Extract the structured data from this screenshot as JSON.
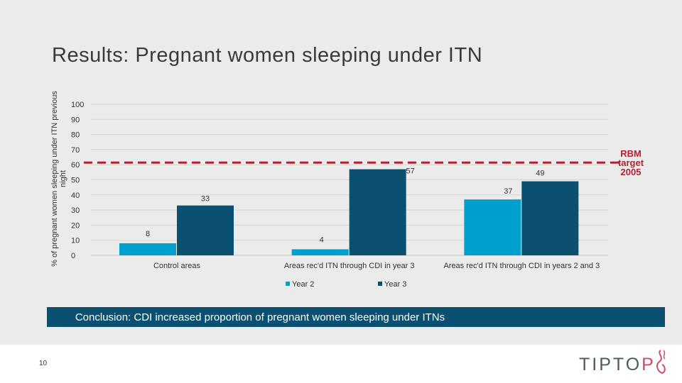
{
  "title": "Results: Pregnant women sleeping under ITN",
  "conclusion": "Conclusion: CDI increased proportion of pregnant women sleeping under ITNs",
  "page_number": "10",
  "logo": {
    "prefix": "TIPTO",
    "o": "P",
    "suffix": ""
  },
  "colors": {
    "year2": "#00a0cc",
    "year3": "#0b4f71",
    "target_line": "#b0232f",
    "background": "#ebebeb"
  },
  "chart_data": {
    "type": "bar",
    "categories": [
      "Control areas",
      "Areas rec'd ITN through CDI in year 3",
      "Areas rec'd ITN through CDI in years 2 and 3"
    ],
    "series": [
      {
        "name": "Year 2",
        "values": [
          8,
          4,
          37
        ]
      },
      {
        "name": "Year 3",
        "values": [
          33,
          57,
          49
        ]
      }
    ],
    "ylabel": "% of pregnant women sleeping under ITN previous night",
    "ylim": [
      0,
      100
    ],
    "yticks": [
      0,
      10,
      20,
      30,
      40,
      50,
      60,
      70,
      80,
      90,
      100
    ],
    "grid": true,
    "legend": "bottom",
    "reference_line": {
      "value": 60,
      "label": "RBM target 2005"
    }
  }
}
